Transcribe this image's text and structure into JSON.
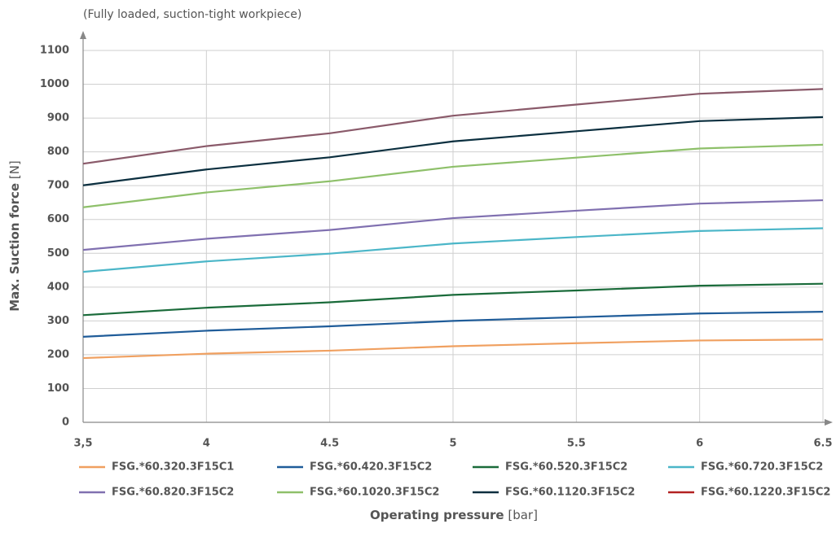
{
  "chart_data": {
    "type": "line",
    "subtitle": "(Fully loaded, suction-tight workpiece)",
    "y_label": "Max. Suction force",
    "y_unit": "[N]",
    "x_label": "Operating pressure",
    "x_unit": "[bar]",
    "x": [
      3.5,
      4,
      4.5,
      5,
      5.5,
      6,
      6.5
    ],
    "xlim": [
      3.5,
      6.5
    ],
    "xticks": [
      {
        "value": 3.5,
        "label": "3,5"
      },
      4,
      4.5,
      5,
      5.5,
      6,
      6.5
    ],
    "ylim": [
      0,
      1100
    ],
    "yticks": [
      0,
      100,
      200,
      300,
      400,
      500,
      600,
      700,
      800,
      900,
      1000,
      1100
    ],
    "grid": true,
    "series": [
      {
        "name": "FSG.*60.320.3F15C1",
        "color": "#f0a060",
        "values": [
          190,
          203,
          212,
          225,
          234,
          242,
          245
        ]
      },
      {
        "name": "FSG.*60.420.3F15C2",
        "color": "#1f5c99",
        "values": [
          253,
          271,
          284,
          300,
          311,
          322,
          327
        ]
      },
      {
        "name": "FSG.*60.520.3F15C2",
        "color": "#1a6b3a",
        "values": [
          317,
          339,
          355,
          377,
          390,
          404,
          410
        ]
      },
      {
        "name": "FSG.*60.720.3F15C2",
        "color": "#4bb6c8",
        "values": [
          445,
          476,
          499,
          529,
          548,
          566,
          574
        ]
      },
      {
        "name": "FSG.*60.820.3F15C2",
        "color": "#8070b0",
        "values": [
          510,
          543,
          569,
          604,
          626,
          647,
          657
        ]
      },
      {
        "name": "FSG.*60.1020.3F15C2",
        "color": "#8ec06a",
        "values": [
          636,
          680,
          713,
          756,
          783,
          810,
          821
        ]
      },
      {
        "name": "FSG.*60.1120.3F15C2",
        "color": "#0b2f3f",
        "values": [
          701,
          748,
          784,
          831,
          861,
          891,
          903
        ]
      },
      {
        "name": "FSG.*60.1220.3F15C2",
        "color": "#b22222",
        "values": [
          null,
          null,
          null,
          null,
          null,
          null,
          null
        ]
      },
      {
        "name": "FSG.*60.1220.3F15C2",
        "color": "#8a5a6a",
        "values": [
          765,
          817,
          855,
          907,
          940,
          972,
          986
        ]
      }
    ]
  }
}
